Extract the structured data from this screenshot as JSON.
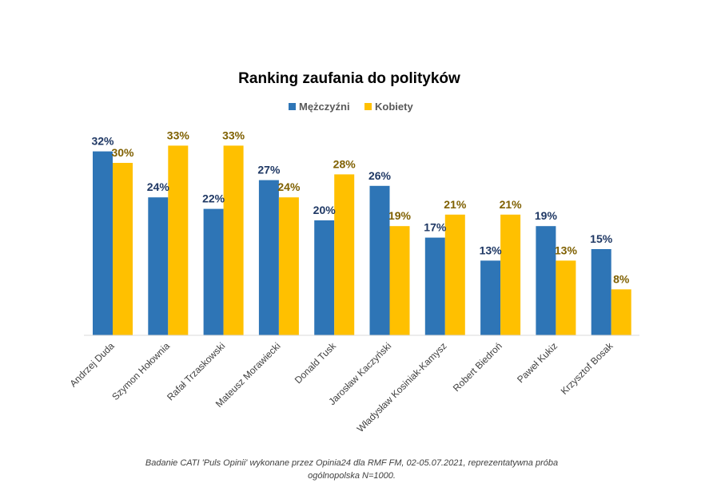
{
  "chart_data": {
    "type": "bar",
    "title": "Ranking zaufania do polityków",
    "categories": [
      "Andrzej Duda",
      "Szymon Hołownia",
      "Rafał Trzaskowski",
      "Mateusz Morawiecki",
      "Donald Tusk",
      "Jarosław Kaczyński",
      "Władysław Kosiniak-Kamysz",
      "Robert Biedroń",
      "Paweł Kukiz",
      "Krzysztof Bosak"
    ],
    "series": [
      {
        "name": "Mężczyźni",
        "color": "#2E75B6",
        "label_color": "#1F3864",
        "values": [
          32,
          24,
          22,
          27,
          20,
          26,
          17,
          13,
          19,
          15
        ],
        "labels": [
          "32%",
          "24%",
          "22%",
          "27%",
          "20%",
          "26%",
          "17%",
          "13%",
          "19%",
          "15%"
        ]
      },
      {
        "name": "Kobiety",
        "color": "#FFC000",
        "label_color": "#7F6000",
        "values": [
          30,
          33,
          33,
          24,
          28,
          19,
          21,
          21,
          13,
          8
        ],
        "labels": [
          "30%",
          "33%",
          "33%",
          "24%",
          "28%",
          "19%",
          "21%",
          "21%",
          "13%",
          "8%"
        ]
      }
    ],
    "ylim": [
      0,
      35
    ],
    "grid": false,
    "legend_position": "top-center",
    "xlabel": "",
    "ylabel": ""
  },
  "source_note": "Badanie CATI 'Puls Opinii' wykonane przez Opinia24 dla RMF FM, 02-05.07.2021, reprezentatywna próba ogólnopolska N=1000."
}
